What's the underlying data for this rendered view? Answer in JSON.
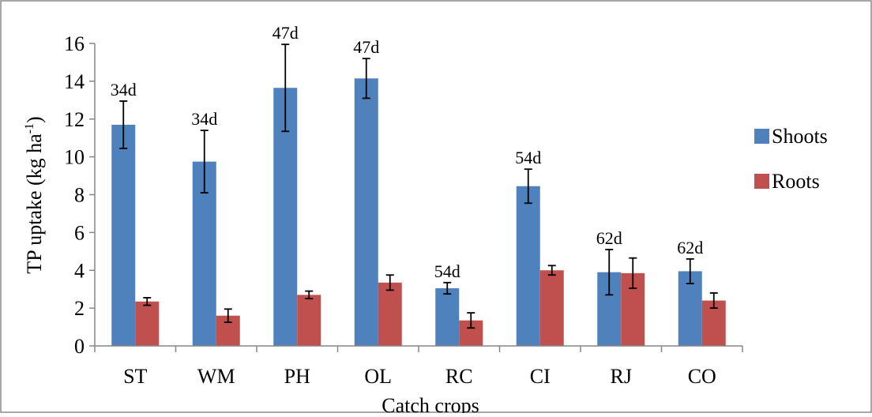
{
  "chart_data": {
    "type": "bar",
    "xlabel": "Catch crops",
    "ylabel": "TP uptake (kg ha-1)",
    "ylabel_parts": {
      "main": "TP uptake (kg ha",
      "superscript": "-1",
      "close": ")"
    },
    "ylim": [
      0,
      16
    ],
    "yticks": [
      "0",
      "2",
      "4",
      "6",
      "8",
      "10",
      "12",
      "14",
      "16"
    ],
    "grid": false,
    "legend_position": "right",
    "categories": [
      "ST",
      "WM",
      "PH",
      "OL",
      "RC",
      "CI",
      "RJ",
      "CO"
    ],
    "annotations": [
      "34d",
      "34d",
      "47d",
      "47d",
      "54d",
      "54d",
      "62d",
      "62d"
    ],
    "series": [
      {
        "name": "Shoots",
        "color": "#4F81BD",
        "values": [
          11.7,
          9.75,
          13.65,
          14.15,
          3.05,
          8.45,
          3.9,
          3.95
        ],
        "errors": [
          1.25,
          1.65,
          2.3,
          1.05,
          0.3,
          0.9,
          1.2,
          0.65
        ]
      },
      {
        "name": "Roots",
        "color": "#C0504D",
        "values": [
          2.35,
          1.6,
          2.7,
          3.35,
          1.35,
          4.0,
          3.85,
          2.4
        ],
        "errors": [
          0.2,
          0.35,
          0.2,
          0.4,
          0.4,
          0.25,
          0.8,
          0.4
        ]
      }
    ]
  }
}
